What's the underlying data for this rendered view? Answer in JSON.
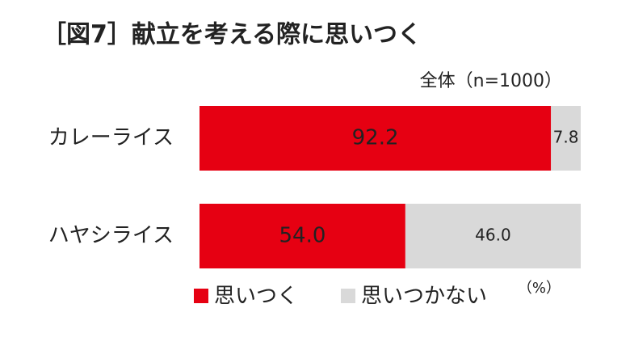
{
  "chart_data": {
    "type": "stacked-bar-horizontal",
    "title": "［図7］献立を考える際に思いつく",
    "subtitle": "全体（n=1000）",
    "unit_label": "（%）",
    "categories": [
      "カレーライス",
      "ハヤシライス"
    ],
    "series": [
      {
        "name": "思いつく",
        "color": "#e60012",
        "values": [
          92.2,
          54.0
        ],
        "value_labels": [
          "92.2",
          "54.0"
        ]
      },
      {
        "name": "思いつかない",
        "color": "#d9d9d9",
        "values": [
          7.8,
          46.0
        ],
        "value_labels": [
          "7.8",
          "46.0"
        ]
      }
    ],
    "xlim": [
      0,
      100
    ]
  }
}
